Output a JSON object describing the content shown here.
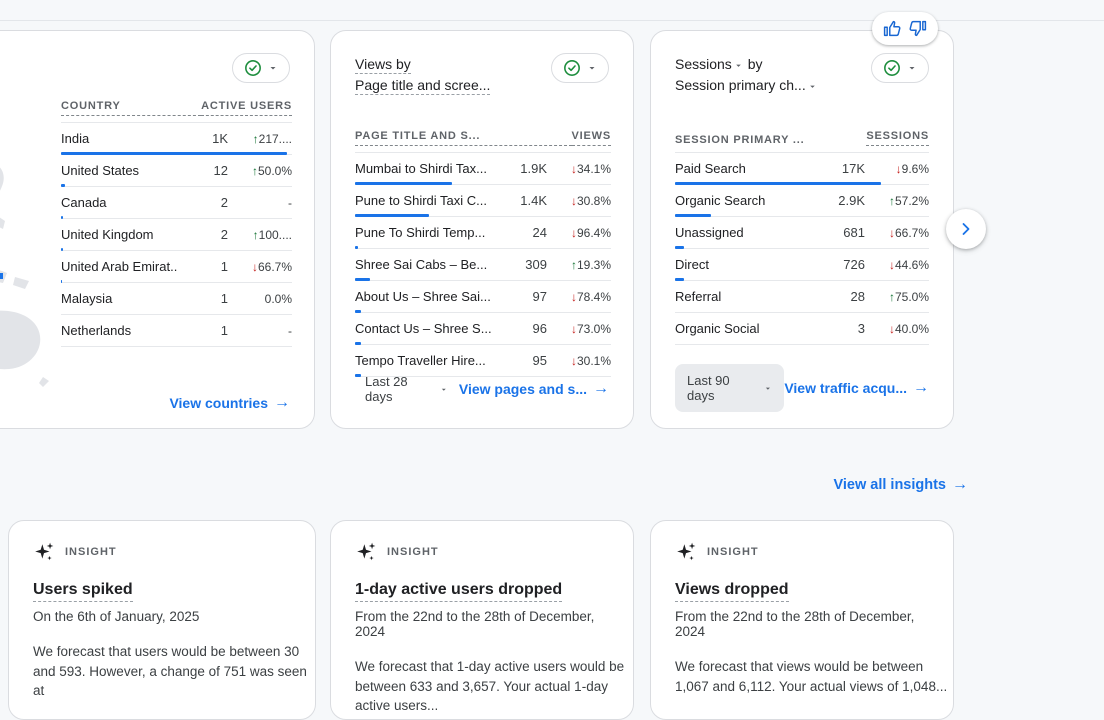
{
  "colors": {
    "accent": "#1a73e8",
    "up": "#137333",
    "down": "#c5221f",
    "link": "#1a73e8"
  },
  "feedback": {
    "thumb_up_icon": "thumb-up",
    "thumb_down_icon": "thumb-down"
  },
  "cards": {
    "countries": {
      "columns": {
        "dimension": "Country",
        "metric": "Active users"
      },
      "rows": [
        {
          "name": "India",
          "value": "1K",
          "dir": "up",
          "change": "217....",
          "bar": 98
        },
        {
          "name": "United States",
          "value": "12",
          "dir": "up",
          "change": "50.0%",
          "bar": 1.8
        },
        {
          "name": "Canada",
          "value": "2",
          "dir": "none",
          "change": "-",
          "bar": 1
        },
        {
          "name": "United Kingdom",
          "value": "2",
          "dir": "up",
          "change": "100....",
          "bar": 1
        },
        {
          "name": "United Arab Emirat...",
          "value": "1",
          "dir": "down",
          "change": "66.7%",
          "bar": 0.6
        },
        {
          "name": "Malaysia",
          "value": "1",
          "dir": "none",
          "change": "0.0%",
          "bar": 0
        },
        {
          "name": "Netherlands",
          "value": "1",
          "dir": "none",
          "change": "-",
          "bar": 0
        }
      ],
      "footer_link": "View countries"
    },
    "pages": {
      "title_line1": "Views by",
      "title_line2": "Page title and scree...",
      "columns": {
        "dimension": "Page title and s...",
        "metric": "Views"
      },
      "rows": [
        {
          "name": "Mumbai to Shirdi Tax...",
          "value": "1.9K",
          "dir": "down",
          "change": "34.1%",
          "bar": 38
        },
        {
          "name": "Pune to Shirdi Taxi C...",
          "value": "1.4K",
          "dir": "down",
          "change": "30.8%",
          "bar": 29
        },
        {
          "name": "Pune To Shirdi Temp...",
          "value": "24",
          "dir": "down",
          "change": "96.4%",
          "bar": 1
        },
        {
          "name": "Shree Sai Cabs – Be...",
          "value": "309",
          "dir": "up",
          "change": "19.3%",
          "bar": 6
        },
        {
          "name": "About Us – Shree Sai...",
          "value": "97",
          "dir": "down",
          "change": "78.4%",
          "bar": 2.3
        },
        {
          "name": "Contact Us – Shree S...",
          "value": "96",
          "dir": "down",
          "change": "73.0%",
          "bar": 2.3
        },
        {
          "name": "Tempo Traveller Hire...",
          "value": "95",
          "dir": "down",
          "change": "30.1%",
          "bar": 2.3
        }
      ],
      "date_range": "Last 28 days",
      "footer_link": "View pages and s..."
    },
    "traffic": {
      "title_metric": "Sessions",
      "title_by": "by",
      "title_line2": "Session primary ch...",
      "columns": {
        "dimension": "Session primary ...",
        "metric": "Sessions"
      },
      "rows": [
        {
          "name": "Paid Search",
          "value": "17K",
          "dir": "down",
          "change": "9.6%",
          "bar": 81
        },
        {
          "name": "Organic Search",
          "value": "2.9K",
          "dir": "up",
          "change": "57.2%",
          "bar": 14
        },
        {
          "name": "Unassigned",
          "value": "681",
          "dir": "down",
          "change": "66.7%",
          "bar": 3.5
        },
        {
          "name": "Direct",
          "value": "726",
          "dir": "down",
          "change": "44.6%",
          "bar": 3.5
        },
        {
          "name": "Referral",
          "value": "28",
          "dir": "up",
          "change": "75.0%",
          "bar": 0
        },
        {
          "name": "Organic Social",
          "value": "3",
          "dir": "down",
          "change": "40.0%",
          "bar": 0
        }
      ],
      "date_range": "Last 90 days",
      "footer_link": "View traffic acqu..."
    }
  },
  "insights_link": {
    "label": "View all insights",
    "arrow": "→"
  },
  "insights": [
    {
      "label": "INSIGHT",
      "title": "Users spiked",
      "subtitle": "On the 6th of January, 2025",
      "body": "We forecast that users would be between 30 and 593. However, a change of 751 was seen at"
    },
    {
      "label": "INSIGHT",
      "title": "1-day active users dropped",
      "subtitle": "From the 22nd to the 28th of December, 2024",
      "body": "We forecast that 1-day active users would be between 633 and 3,657. Your actual 1-day active users..."
    },
    {
      "label": "INSIGHT",
      "title": "Views dropped",
      "subtitle": "From the 22nd to the 28th of December, 2024",
      "body": "We forecast that views would be between 1,067 and 6,112. Your actual views of 1,048..."
    }
  ],
  "misc": {
    "link_arrow": "→"
  }
}
